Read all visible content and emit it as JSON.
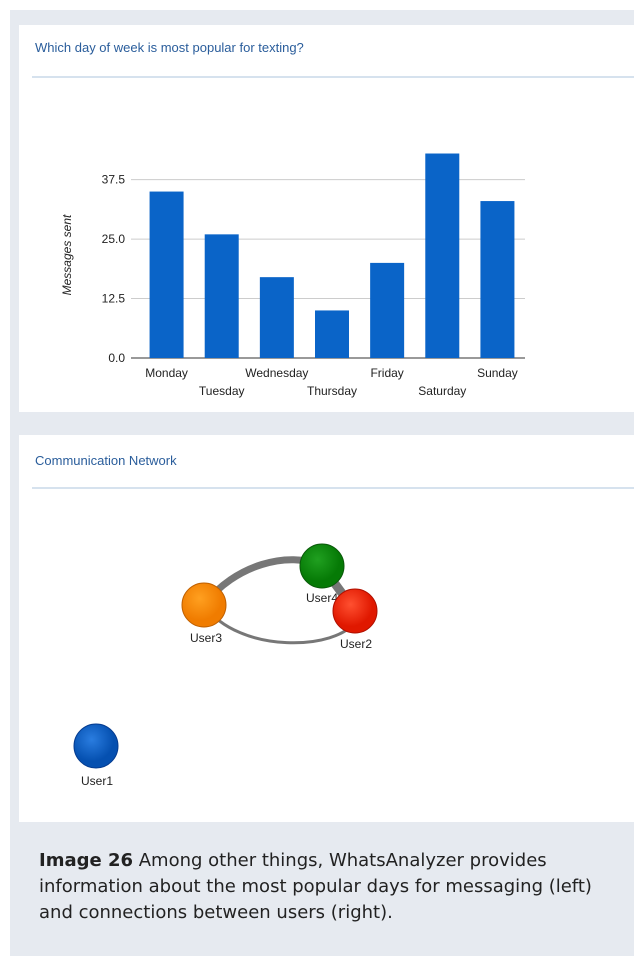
{
  "chart_data": {
    "type": "bar",
    "title": "Which day of week is most popular for texting?",
    "y_label": "Messages sent",
    "categories": [
      "Monday",
      "Tuesday",
      "Wednesday",
      "Thursday",
      "Friday",
      "Saturday",
      "Sunday"
    ],
    "values": [
      35,
      26,
      17,
      10,
      20,
      43,
      33
    ],
    "color": "#0a64c8",
    "ylim": [
      0,
      45
    ],
    "yticks": [
      {
        "value": 0,
        "label": "0.0"
      },
      12.5,
      {
        "value": 25,
        "label": "25.0"
      },
      37.5
    ],
    "grid": true
  },
  "network": {
    "title": "Communication Network",
    "nodes": [
      {
        "label": "User1"
      },
      {
        "label": "User2"
      },
      {
        "label": "User3"
      },
      {
        "label": "User4"
      }
    ]
  },
  "caption": {
    "label": "Image 26",
    "text": " Among other things, WhatsAnalyzer provides information about the most popular days for messaging (left) and connections between users (right)."
  }
}
